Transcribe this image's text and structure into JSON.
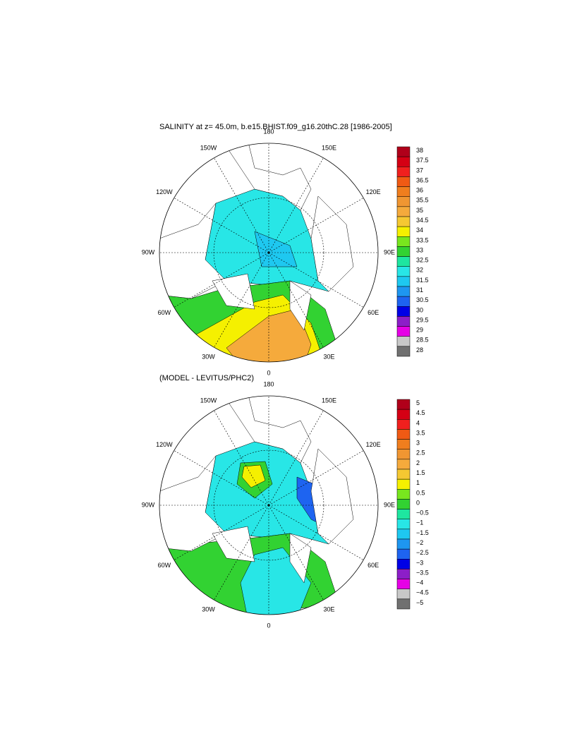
{
  "panels": [
    {
      "title": "SALINITY at z=  45.0m, b.e15.BHIST.f09_g16.20thC.28 [1986-2005]",
      "lon_labels": [
        "180",
        "150E",
        "120E",
        "90E",
        "60E",
        "30E",
        "0",
        "30W",
        "60W",
        "90W",
        "120W",
        "150W"
      ],
      "colorbar": {
        "levels": [
          38,
          37.5,
          37,
          36.5,
          36,
          35.5,
          35,
          34.5,
          34,
          33.5,
          33,
          32.5,
          32,
          31.5,
          31,
          30.5,
          30,
          29.5,
          29,
          28.5,
          28
        ],
        "colors": [
          "#b0001a",
          "#d40014",
          "#f0201e",
          "#f05a14",
          "#f07e1e",
          "#f09632",
          "#f5aa3c",
          "#f5c832",
          "#f5f000",
          "#78e61e",
          "#32d232",
          "#1ee6a0",
          "#28e6e6",
          "#1ec8f0",
          "#1e96f0",
          "#1e64f0",
          "#0000e6",
          "#8c1ec8",
          "#e600e6",
          "#c8c8c8",
          "#707070"
        ]
      }
    },
    {
      "title": "(MODEL - LEVITUS/PHC2)",
      "lon_labels": [
        "180",
        "150E",
        "120E",
        "90E",
        "60E",
        "30E",
        "0",
        "30W",
        "60W",
        "90W",
        "120W",
        "150W"
      ],
      "colorbar": {
        "levels": [
          5,
          4.5,
          4,
          3.5,
          3,
          2.5,
          2,
          1.5,
          1,
          0.5,
          0,
          {
            "value": -0.5,
            "label": "−0.5"
          },
          {
            "value": -1,
            "label": "−1"
          },
          {
            "value": -1.5,
            "label": "−1.5"
          },
          {
            "value": -2,
            "label": "−2"
          },
          {
            "value": -2.5,
            "label": "−2.5"
          },
          {
            "value": -3,
            "label": "−3"
          },
          {
            "value": -3.5,
            "label": "−3.5"
          },
          {
            "value": -4,
            "label": "−4"
          },
          {
            "value": -4.5,
            "label": "−4.5"
          },
          {
            "value": -5,
            "label": "−5"
          }
        ],
        "colors": [
          "#b0001a",
          "#d40014",
          "#f0201e",
          "#f05a14",
          "#f07e1e",
          "#f09632",
          "#f5aa3c",
          "#f5c832",
          "#f5f000",
          "#78e61e",
          "#32d232",
          "#1ee6a0",
          "#28e6e6",
          "#1ec8f0",
          "#1e96f0",
          "#1e64f0",
          "#0000e6",
          "#8c1ec8",
          "#e600e6",
          "#c8c8c8",
          "#707070"
        ]
      }
    }
  ]
}
